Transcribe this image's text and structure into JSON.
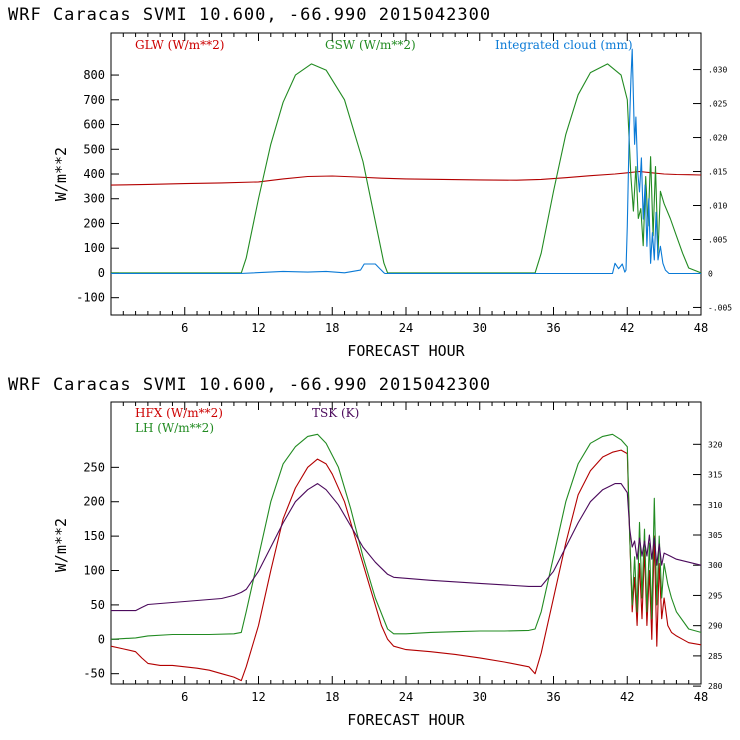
{
  "chart_data": [
    {
      "type": "line",
      "title": "WRF  Caracas SVMI  10.600, -66.990  2015042300",
      "xlabel": "FORECAST HOUR",
      "ylabel": "W/m**2",
      "xlim": [
        0,
        48
      ],
      "ylim": [
        -170,
        970
      ],
      "y2lim": [
        -0.00611,
        0.03538
      ],
      "x_ticks": [
        6,
        12,
        18,
        24,
        30,
        36,
        42,
        48
      ],
      "y_ticks": [
        -100,
        0,
        100,
        200,
        300,
        400,
        500,
        600,
        700,
        800
      ],
      "y2_ticks": [
        -0.005,
        0,
        0.005,
        0.01,
        0.015,
        0.02,
        0.025,
        0.03
      ],
      "y2_tick_labels": [
        "-.005",
        "0",
        ".005",
        ".010",
        ".015",
        ".020",
        ".025",
        ".030"
      ],
      "legend": [
        {
          "label": "GLW (W/m**2)",
          "color": "#cc0000"
        },
        {
          "label": "GSW (W/m**2)",
          "color": "#228b22"
        },
        {
          "label": "Integrated cloud (mm)",
          "color": "#0a7ad6"
        }
      ],
      "series": [
        {
          "name": "GLW (W/m**2)",
          "color": "#b30000",
          "axis": "left",
          "x": [
            0,
            3,
            6,
            9,
            12,
            14,
            16,
            18,
            20,
            22,
            24,
            27,
            30,
            33,
            35,
            37,
            39,
            41,
            42,
            43,
            44,
            45,
            46,
            47,
            48
          ],
          "values": [
            355,
            358,
            361,
            364,
            368,
            380,
            390,
            392,
            388,
            383,
            380,
            378,
            376,
            375,
            378,
            385,
            393,
            400,
            405,
            410,
            405,
            400,
            398,
            397,
            396
          ]
        },
        {
          "name": "GSW (W/m**2)",
          "color": "#228b22",
          "axis": "left",
          "x": [
            0,
            10.6,
            11,
            12,
            13,
            14,
            15,
            16.3,
            17.5,
            19,
            20.5,
            22.2,
            22.5,
            34.5,
            35,
            36,
            37,
            38,
            39,
            40.4,
            41.5,
            42.0,
            42.3,
            42.5,
            42.7,
            42.9,
            43.1,
            43.3,
            43.5,
            43.7,
            43.9,
            44.1,
            44.3,
            44.5,
            44.7,
            45.0,
            45.5,
            46,
            46.5,
            47,
            48
          ],
          "values": [
            0,
            0,
            60,
            300,
            520,
            690,
            800,
            845,
            820,
            700,
            450,
            40,
            0,
            0,
            80,
            330,
            560,
            720,
            810,
            845,
            800,
            700,
            390,
            250,
            430,
            220,
            260,
            110,
            390,
            190,
            470,
            150,
            430,
            80,
            330,
            280,
            220,
            150,
            80,
            20,
            0
          ]
        },
        {
          "name": "Integrated cloud (mm)",
          "color": "#0a7ad6",
          "axis": "right",
          "x": [
            0,
            10.5,
            14,
            16,
            17.5,
            19,
            20.3,
            20.6,
            21.5,
            22.2,
            22.3,
            40.8,
            41.0,
            41.3,
            41.6,
            41.8,
            41.9,
            42.0,
            42.15,
            42.3,
            42.4,
            42.5,
            42.6,
            42.7,
            42.85,
            43.0,
            43.15,
            43.3,
            43.45,
            43.6,
            43.75,
            43.9,
            44.05,
            44.2,
            44.35,
            44.5,
            44.7,
            44.9,
            45.1,
            45.4,
            48
          ],
          "values": [
            0,
            0,
            0.0003,
            0.0002,
            0.0003,
            0.0001,
            0.0005,
            0.0014,
            0.0014,
            0.0001,
            0,
            0,
            0.0015,
            0.0007,
            0.0014,
            0.0002,
            0.0005,
            0.007,
            0.02,
            0.0285,
            0.033,
            0.026,
            0.019,
            0.023,
            0.015,
            0.012,
            0.017,
            0.008,
            0.013,
            0.004,
            0.011,
            0.0015,
            0.006,
            0.002,
            0.009,
            0.002,
            0.004,
            0.0015,
            0.0005,
            0,
            0
          ]
        }
      ]
    },
    {
      "type": "line",
      "title": "WRF  Caracas SVMI  10.600, -66.990  2015042300",
      "xlabel": "FORECAST HOUR",
      "ylabel": "W/m**2",
      "xlim": [
        0,
        48
      ],
      "ylim": [
        -65,
        345
      ],
      "y2lim": [
        280.35,
        327
      ],
      "x_ticks": [
        6,
        12,
        18,
        24,
        30,
        36,
        42,
        48
      ],
      "y_ticks": [
        -50,
        0,
        50,
        100,
        150,
        200,
        250
      ],
      "y2_ticks": [
        280,
        285,
        290,
        295,
        300,
        305,
        310,
        315,
        320
      ],
      "y2_tick_labels": [
        "280",
        "285",
        "290",
        "295",
        "300",
        "305",
        "310",
        "315",
        "320"
      ],
      "legend": [
        {
          "label": "HFX (W/m**2)",
          "color": "#cc0000"
        },
        {
          "label": "LH  (W/m**2)",
          "color": "#228b22"
        },
        {
          "label": "TSK (K)",
          "color": "#4b0a5c"
        }
      ],
      "series": [
        {
          "name": "HFX (W/m**2)",
          "color": "#b30000",
          "axis": "left",
          "x": [
            0,
            1,
            2,
            2.5,
            3,
            4,
            5,
            6,
            7,
            8,
            9,
            10,
            10.6,
            11,
            12,
            13,
            14,
            15,
            16,
            16.8,
            17.5,
            18,
            19,
            20,
            21,
            22,
            22.5,
            23,
            24,
            26,
            28,
            30,
            32,
            34,
            34.5,
            35,
            36,
            37,
            38,
            39,
            40,
            40.8,
            41.5,
            42.0,
            42.2,
            42.4,
            42.6,
            42.8,
            43.0,
            43.2,
            43.4,
            43.6,
            43.8,
            44.0,
            44.2,
            44.4,
            44.6,
            44.8,
            45.0,
            45.3,
            45.6,
            46,
            46.5,
            47,
            48
          ],
          "values": [
            -10,
            -14,
            -18,
            -27,
            -35,
            -38,
            -38,
            -40,
            -42,
            -45,
            -50,
            -55,
            -60,
            -40,
            20,
            100,
            175,
            220,
            250,
            262,
            255,
            240,
            200,
            140,
            80,
            20,
            0,
            -10,
            -15,
            -18,
            -22,
            -27,
            -33,
            -40,
            -50,
            -20,
            60,
            140,
            210,
            245,
            265,
            272,
            275,
            270,
            150,
            40,
            90,
            20,
            110,
            30,
            130,
            20,
            100,
            0,
            150,
            -10,
            110,
            30,
            60,
            20,
            10,
            5,
            0,
            -5,
            -8
          ]
        },
        {
          "name": "LH  (W/m**2)",
          "color": "#228b22",
          "axis": "left",
          "x": [
            0,
            2,
            3,
            5,
            8,
            10,
            10.6,
            11,
            12,
            13,
            14,
            15,
            16,
            16.8,
            17.5,
            18.5,
            19.5,
            20.5,
            21.5,
            22.5,
            23,
            24,
            26,
            28,
            30,
            32,
            34,
            34.5,
            35,
            36,
            37,
            38,
            39,
            40,
            40.8,
            41.5,
            42.0,
            42.2,
            42.4,
            42.6,
            42.8,
            43.0,
            43.2,
            43.4,
            43.6,
            43.8,
            44.0,
            44.2,
            44.4,
            44.6,
            44.8,
            45.0,
            45.3,
            45.6,
            46,
            47,
            48
          ],
          "values": [
            0,
            2,
            5,
            7,
            7,
            8,
            10,
            40,
            120,
            200,
            255,
            280,
            295,
            298,
            285,
            250,
            190,
            120,
            60,
            15,
            8,
            8,
            10,
            11,
            12,
            12,
            13,
            15,
            40,
            120,
            200,
            255,
            285,
            295,
            298,
            290,
            280,
            150,
            50,
            120,
            40,
            170,
            60,
            160,
            40,
            140,
            30,
            205,
            50,
            150,
            60,
            110,
            80,
            60,
            40,
            15,
            10
          ]
        },
        {
          "name": "TSK (K)",
          "color": "#4b0a5c",
          "axis": "right",
          "x": [
            0,
            2,
            2.5,
            3,
            6,
            9,
            10,
            10.6,
            11,
            12,
            13,
            14,
            15,
            16,
            16.8,
            17.5,
            18.5,
            19.5,
            20.5,
            21.5,
            22.5,
            23,
            26,
            30,
            34,
            35,
            36,
            37,
            38,
            39,
            40,
            41,
            41.5,
            42,
            42.2,
            42.4,
            42.6,
            42.8,
            43.0,
            43.2,
            43.4,
            43.6,
            43.8,
            44.0,
            44.2,
            44.4,
            44.6,
            44.8,
            45.0,
            45.5,
            46,
            47,
            48
          ],
          "values": [
            292.5,
            292.5,
            293,
            293.5,
            294,
            294.5,
            295,
            295.5,
            296,
            299,
            303,
            307,
            310.5,
            312.5,
            313.5,
            312.5,
            310,
            306.5,
            303,
            300.5,
            298.5,
            298,
            297.5,
            297,
            296.5,
            296.5,
            299,
            303,
            307,
            310.5,
            312.5,
            313.5,
            313.5,
            312,
            306,
            303,
            304,
            301,
            304.5,
            301.5,
            304,
            301.5,
            305,
            301,
            304.5,
            300,
            303.5,
            300,
            302,
            301.5,
            301,
            300.5,
            300
          ]
        }
      ]
    }
  ]
}
